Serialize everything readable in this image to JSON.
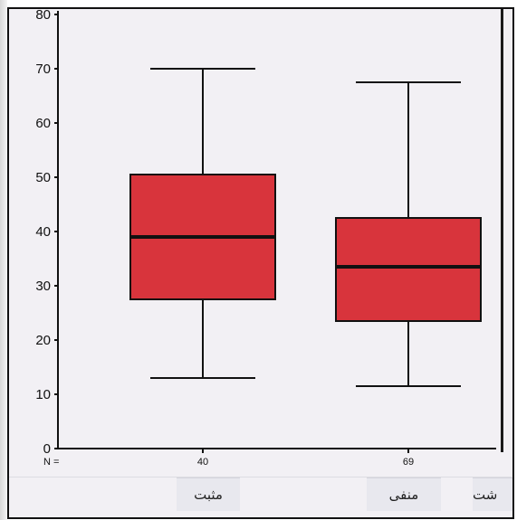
{
  "chart_data": {
    "type": "boxplot",
    "ylim": [
      0,
      80
    ],
    "yticks": [
      0,
      10,
      20,
      30,
      40,
      50,
      60,
      70,
      80
    ],
    "categories": [
      "مثبت",
      "منفی"
    ],
    "boxes": [
      {
        "category": "مثبت",
        "min": 13,
        "q1": 27.5,
        "median": 39,
        "q3": 50.5,
        "max": 70,
        "n": "40"
      },
      {
        "category": "منفی",
        "min": 11.5,
        "q1": 23.5,
        "median": 33.5,
        "q3": 42.5,
        "max": 67.5,
        "n": "69"
      }
    ],
    "box_color": "#d8343c",
    "grid": false
  },
  "n_label": "N =",
  "ytick_labels": [
    "0",
    "10",
    "20",
    "30",
    "40",
    "50",
    "60",
    "70",
    "80"
  ],
  "group_labels": [
    "مثبت",
    "منفی"
  ],
  "cropped_label": "شت"
}
